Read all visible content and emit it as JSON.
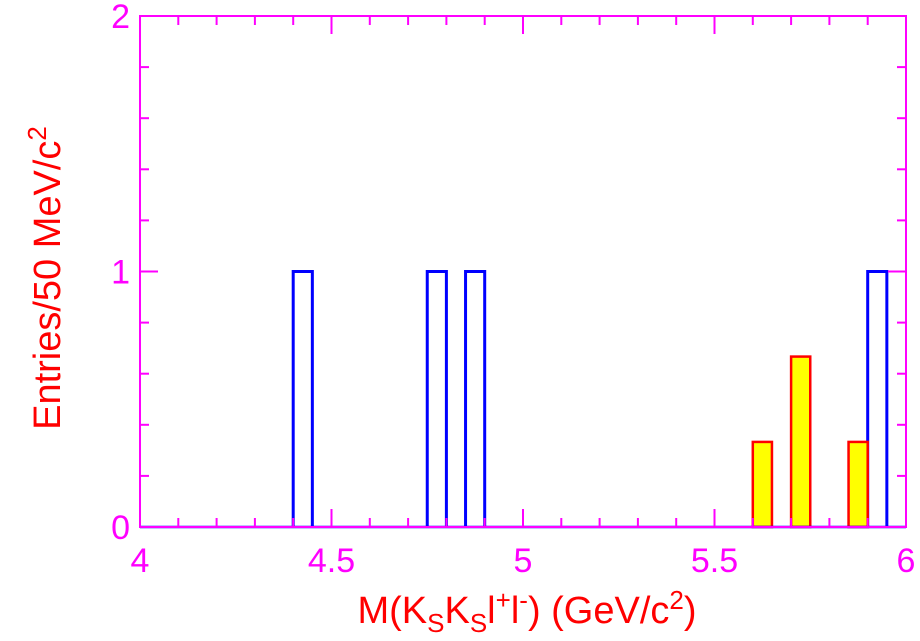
{
  "chart_data": {
    "type": "bar",
    "xlabel": {
      "parts": [
        {
          "text": "M(K",
          "shift": ""
        },
        {
          "text": "S",
          "shift": "sub"
        },
        {
          "text": "K",
          "shift": ""
        },
        {
          "text": "S",
          "shift": "sub"
        },
        {
          "text": "l",
          "shift": ""
        },
        {
          "text": "+",
          "shift": "super"
        },
        {
          "text": "l",
          "shift": ""
        },
        {
          "text": "-",
          "shift": "super"
        },
        {
          "text": ") (GeV/c",
          "shift": ""
        },
        {
          "text": "2",
          "shift": "super"
        },
        {
          "text": ")",
          "shift": ""
        }
      ]
    },
    "ylabel": {
      "parts": [
        {
          "text": "Entries/50 MeV/c",
          "shift": ""
        },
        {
          "text": "2",
          "shift": "super"
        }
      ]
    },
    "xlim": [
      4,
      6
    ],
    "ylim": [
      0,
      2
    ],
    "bin_width": 0.05,
    "x_ticks": [
      {
        "value": 4,
        "label": "4"
      },
      {
        "value": 4.5,
        "label": "4.5"
      },
      {
        "value": 5,
        "label": "5"
      },
      {
        "value": 5.5,
        "label": "5.5"
      },
      {
        "value": 6,
        "label": "6"
      }
    ],
    "y_ticks": [
      {
        "value": 0,
        "label": "0"
      },
      {
        "value": 1,
        "label": "1"
      },
      {
        "value": 2,
        "label": "2"
      }
    ],
    "x_minor_step": 0.1,
    "y_minor_step": 0.2,
    "series": [
      {
        "style": "hollow",
        "stroke": "#0000ff",
        "fill": "none",
        "bins": [
          {
            "x0": 4.4,
            "x1": 4.45,
            "value": 1
          },
          {
            "x0": 4.75,
            "x1": 4.8,
            "value": 1
          },
          {
            "x0": 4.85,
            "x1": 4.9,
            "value": 1
          },
          {
            "x0": 5.9,
            "x1": 5.95,
            "value": 1
          }
        ]
      },
      {
        "style": "filled",
        "stroke": "#ff0000",
        "fill": "#ffff00",
        "bins": [
          {
            "x0": 5.6,
            "x1": 5.65,
            "value": 0.333
          },
          {
            "x0": 5.7,
            "x1": 5.75,
            "value": 0.667
          },
          {
            "x0": 5.85,
            "x1": 5.9,
            "value": 0.333
          }
        ]
      }
    ]
  },
  "colors": {
    "frame": "#ff00ff",
    "tick_labels": "#ff00ff",
    "axis_titles": "#ff0000",
    "baseline": "#0000ff"
  }
}
